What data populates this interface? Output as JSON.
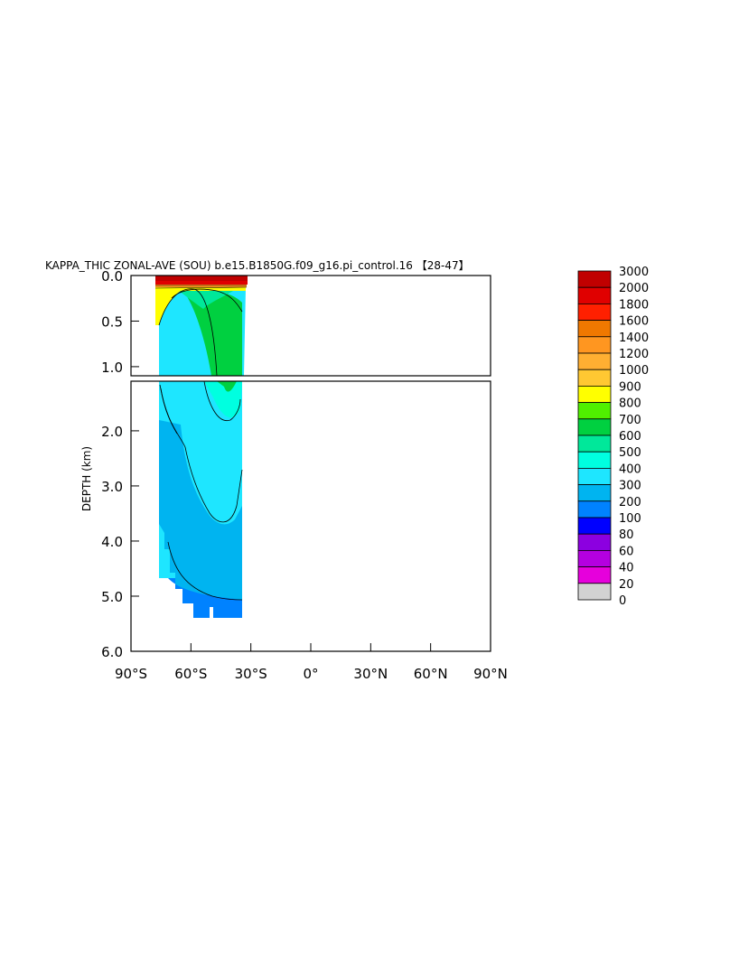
{
  "chart_data": {
    "type": "heatmap",
    "title": "KAPPA_THIC ZONAL-AVE (SOU) b.e15.B1850G.f09_g16.pi_control.16 【28-47】",
    "xlabel": "",
    "ylabel": "DEPTH (km)",
    "xlim": [
      -90,
      90
    ],
    "ylim": [
      6.0,
      0.0
    ],
    "x_ticks": [
      {
        "value": -90,
        "label": "90°S"
      },
      {
        "value": -60,
        "label": "60°S"
      },
      {
        "value": -30,
        "label": "30°S"
      },
      {
        "value": 0,
        "label": "0°"
      },
      {
        "value": 30,
        "label": "30°N"
      },
      {
        "value": 60,
        "label": "60°N"
      },
      {
        "value": 90,
        "label": "90°N"
      }
    ],
    "y_ticks_upper": [
      {
        "value": 0.0,
        "label": "0.0"
      },
      {
        "value": 0.5,
        "label": "0.5"
      },
      {
        "value": 1.0,
        "label": "1.0"
      }
    ],
    "y_ticks_lower": [
      {
        "value": 2.0,
        "label": "2.0"
      },
      {
        "value": 3.0,
        "label": "3.0"
      },
      {
        "value": 4.0,
        "label": "4.0"
      },
      {
        "value": 5.0,
        "label": "5.0"
      },
      {
        "value": 6.0,
        "label": "6.0"
      }
    ],
    "panel_split_depth_km": 1.1,
    "colorbar": {
      "levels": [
        "3000",
        "2000",
        "1800",
        "1600",
        "1400",
        "1200",
        "1000",
        "900",
        "800",
        "700",
        "600",
        "500",
        "400",
        "300",
        "200",
        "100",
        "80",
        "60",
        "40",
        "20",
        "0"
      ],
      "colors": [
        "#c00000",
        "#e00000",
        "#ff2000",
        "#f07800",
        "#ff9620",
        "#ffaf32",
        "#ffc832",
        "#ffff00",
        "#50f000",
        "#00d040",
        "#00e89a",
        "#00ffe0",
        "#1ee6ff",
        "#00b4f0",
        "#0082ff",
        "#0000ff",
        "#8c00e0",
        "#b400e0",
        "#e600dc",
        "#d2d2d2",
        "#6e6e6e"
      ]
    },
    "regions": [
      {
        "label": "surface layer",
        "level": "3000",
        "lat_range": [
          -78,
          -34
        ],
        "depth_km": [
          0.0,
          0.05
        ]
      },
      {
        "label": "upper green core",
        "level": "600",
        "lat_range": [
          -58,
          -36
        ],
        "depth_km": [
          0.1,
          1.1
        ]
      },
      {
        "label": "deep light-blue",
        "level": "300",
        "lat_range": [
          -77,
          -34
        ],
        "depth_km": [
          0.3,
          3.7
        ]
      },
      {
        "label": "abyssal blue",
        "level": "200",
        "lat_range": [
          -75,
          -34
        ],
        "depth_km": [
          3.3,
          5.35
        ]
      }
    ],
    "grid": false,
    "legend_placement": "right"
  }
}
